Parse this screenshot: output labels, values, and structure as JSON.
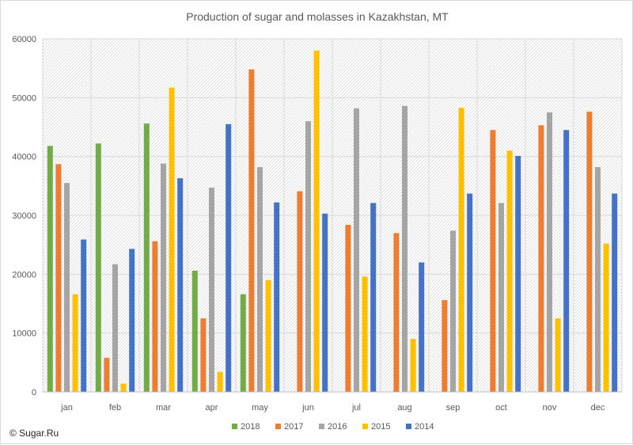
{
  "chart_data": {
    "type": "bar",
    "title": "Production of sugar and molasses in Kazakhstan, MT",
    "xlabel": "",
    "ylabel": "",
    "categories": [
      "jan",
      "feb",
      "mar",
      "apr",
      "may",
      "jun",
      "jul",
      "aug",
      "sep",
      "oct",
      "nov",
      "dec"
    ],
    "ylim": [
      0,
      60000
    ],
    "yticks": [
      "0",
      "10000",
      "20000",
      "30000",
      "40000",
      "50000",
      "60000"
    ],
    "ytick_values": [
      0,
      10000,
      20000,
      30000,
      40000,
      50000,
      60000
    ],
    "grid": true,
    "legend_position": "bottom",
    "series": [
      {
        "name": "2018",
        "color": "#70ad47",
        "values": [
          41800,
          42200,
          45600,
          20600,
          16600,
          null,
          null,
          null,
          null,
          null,
          null,
          null
        ]
      },
      {
        "name": "2017",
        "color": "#ed7d31",
        "values": [
          38700,
          5800,
          25600,
          12500,
          54800,
          34100,
          28400,
          27000,
          15600,
          44500,
          45300,
          47600
        ]
      },
      {
        "name": "2016",
        "color": "#a5a5a5",
        "values": [
          35500,
          21700,
          38800,
          34700,
          38200,
          46000,
          48200,
          48600,
          27400,
          32100,
          47500,
          38200
        ]
      },
      {
        "name": "2015",
        "color": "#ffc000",
        "values": [
          16600,
          1400,
          51700,
          3400,
          19000,
          58000,
          19600,
          9000,
          48300,
          41000,
          12500,
          25200
        ]
      },
      {
        "name": "2014",
        "color": "#4472c4",
        "values": [
          25900,
          24300,
          36300,
          45500,
          32200,
          30300,
          32100,
          22000,
          33700,
          40100,
          44500,
          33700
        ]
      }
    ]
  },
  "credit": "© Sugar.Ru"
}
